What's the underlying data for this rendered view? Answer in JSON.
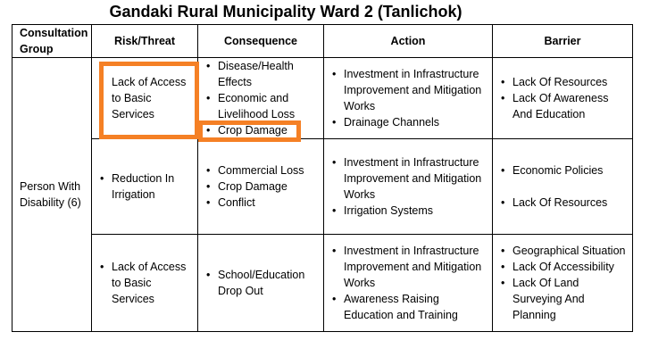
{
  "title": "Gandaki Rural Municipality Ward 2 (Tanlichok)",
  "headers": {
    "group": "Consultation Group",
    "risk": "Risk/Threat",
    "consequence": "Consequence",
    "action": "Action",
    "barrier": "Barrier"
  },
  "group": "Person With Disability (6)",
  "rows": [
    {
      "risk": "Lack of Access to Basic Services",
      "consequence": [
        "Disease/Health Effects",
        "Economic and Livelihood Loss",
        "Crop Damage"
      ],
      "action": [
        "Investment in Infrastructure Improvement and Mitigation Works",
        "Drainage Channels"
      ],
      "barrier": [
        "Lack Of Resources",
        "Lack Of Awareness And Education"
      ]
    },
    {
      "risk": "Reduction In Irrigation",
      "consequence": [
        "Commercial Loss",
        "Crop Damage",
        "Conflict"
      ],
      "action": [
        "Investment in Infrastructure Improvement and Mitigation Works",
        "Irrigation Systems"
      ],
      "barrier": [
        "Economic Policies",
        "Lack Of Resources"
      ]
    },
    {
      "risk": "Lack of Access to Basic Services",
      "consequence": [
        "School/Education Drop Out"
      ],
      "action": [
        "Investment in Infrastructure Improvement and Mitigation Works",
        "Awareness Raising Education and Training"
      ],
      "barrier": [
        "Geographical Situation",
        "Lack Of Accessibility",
        "Lack Of Land Surveying And Planning"
      ]
    }
  ],
  "colors": {
    "highlight": "#f58025"
  }
}
